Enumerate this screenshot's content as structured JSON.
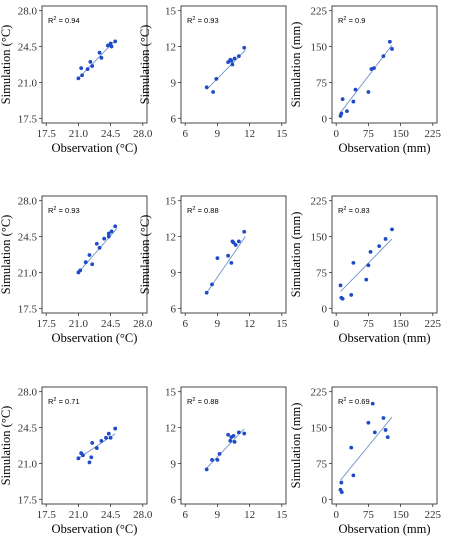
{
  "colors": {
    "point": "#1f4ac8",
    "fit_line": "#6f94c8",
    "panel_border": "#333333"
  },
  "chart_data": [
    {
      "type": "scatter",
      "r2": "0.94",
      "xlabel": "Observation (°C)",
      "ylabel": "Simulation (°C)",
      "xlim": [
        17.5,
        28.0
      ],
      "ylim": [
        17.5,
        28.0
      ],
      "xticks": [
        "17.5",
        "21.0",
        "24.5",
        "28.0"
      ],
      "yticks": [
        "17.5",
        "21.0",
        "24.5",
        "28.0"
      ],
      "fit": [
        [
          21.0,
          21.4
        ],
        [
          25.0,
          25.1
        ]
      ],
      "points": [
        [
          21.0,
          21.4
        ],
        [
          21.3,
          22.4
        ],
        [
          21.4,
          21.7
        ],
        [
          22.0,
          22.3
        ],
        [
          22.3,
          23.0
        ],
        [
          22.5,
          22.6
        ],
        [
          23.3,
          23.9
        ],
        [
          23.5,
          23.4
        ],
        [
          24.2,
          24.6
        ],
        [
          24.5,
          24.8
        ],
        [
          24.6,
          24.5
        ],
        [
          25.0,
          25.0
        ]
      ]
    },
    {
      "type": "scatter",
      "r2": "0.93",
      "xlabel": "",
      "ylabel": "Simulation (°C)",
      "xlim": [
        6,
        15
      ],
      "ylim": [
        6,
        15
      ],
      "xticks": [
        "6",
        "9",
        "12",
        "15"
      ],
      "yticks": [
        "6",
        "9",
        "12",
        "15"
      ],
      "fit": [
        [
          8.0,
          8.4
        ],
        [
          11.6,
          11.7
        ]
      ],
      "points": [
        [
          8.0,
          8.6
        ],
        [
          8.6,
          8.2
        ],
        [
          8.9,
          9.3
        ],
        [
          10.0,
          10.7
        ],
        [
          10.2,
          10.9
        ],
        [
          10.3,
          10.8
        ],
        [
          10.4,
          10.5
        ],
        [
          10.6,
          11.0
        ],
        [
          11.0,
          11.2
        ],
        [
          11.5,
          11.9
        ]
      ]
    },
    {
      "type": "scatter",
      "r2": "0.9",
      "xlabel": "Observation (mm)",
      "ylabel": "Simulation (mm)",
      "xlim": [
        0,
        225
      ],
      "ylim": [
        0,
        225
      ],
      "xticks": [
        "0",
        "75",
        "150",
        "225"
      ],
      "yticks": [
        "0",
        "75",
        "150",
        "225"
      ],
      "fit": [
        [
          10,
          12
        ],
        [
          130,
          153
        ]
      ],
      "points": [
        [
          10,
          5
        ],
        [
          12,
          10
        ],
        [
          15,
          40
        ],
        [
          25,
          15
        ],
        [
          40,
          35
        ],
        [
          45,
          60
        ],
        [
          75,
          55
        ],
        [
          82,
          103
        ],
        [
          88,
          105
        ],
        [
          110,
          130
        ],
        [
          125,
          160
        ],
        [
          130,
          145
        ]
      ]
    },
    {
      "type": "scatter",
      "r2": "0.93",
      "xlabel": "Observation (°C)",
      "ylabel": "Simulation (°C)",
      "xlim": [
        17.5,
        28.0
      ],
      "ylim": [
        17.5,
        28.0
      ],
      "xticks": [
        "17.5",
        "21.0",
        "24.5",
        "28.0"
      ],
      "yticks": [
        "17.5",
        "21.0",
        "24.5",
        "28.0"
      ],
      "fit": [
        [
          21.0,
          21.0
        ],
        [
          25.2,
          25.3
        ]
      ],
      "points": [
        [
          21.0,
          21.0
        ],
        [
          21.2,
          21.2
        ],
        [
          21.8,
          22.0
        ],
        [
          22.2,
          22.7
        ],
        [
          22.5,
          21.8
        ],
        [
          23.0,
          23.8
        ],
        [
          23.3,
          23.4
        ],
        [
          23.8,
          24.3
        ],
        [
          24.3,
          24.5
        ],
        [
          24.6,
          25.0
        ],
        [
          25.0,
          25.5
        ],
        [
          24.3,
          24.8
        ]
      ]
    },
    {
      "type": "scatter",
      "r2": "0.88",
      "xlabel": "",
      "ylabel": "Simulation (°C)",
      "xlim": [
        6,
        15
      ],
      "ylim": [
        6,
        15
      ],
      "xticks": [
        "6",
        "9",
        "12",
        "15"
      ],
      "yticks": [
        "6",
        "9",
        "12",
        "15"
      ],
      "fit": [
        [
          8.0,
          7.3
        ],
        [
          11.6,
          12.0
        ]
      ],
      "points": [
        [
          8.0,
          7.3
        ],
        [
          8.5,
          8.0
        ],
        [
          9.0,
          10.2
        ],
        [
          10.0,
          10.4
        ],
        [
          10.3,
          9.8
        ],
        [
          10.5,
          11.5
        ],
        [
          10.7,
          11.3
        ],
        [
          11.0,
          11.6
        ],
        [
          11.5,
          12.4
        ],
        [
          10.4,
          11.6
        ]
      ]
    },
    {
      "type": "scatter",
      "r2": "0.83",
      "xlabel": "Observation (mm)",
      "ylabel": "Simulation (mm)",
      "xlim": [
        0,
        225
      ],
      "ylim": [
        0,
        225
      ],
      "xticks": [
        "0",
        "75",
        "150",
        "225"
      ],
      "yticks": [
        "0",
        "75",
        "150",
        "225"
      ],
      "fit": [
        [
          10,
          35
        ],
        [
          130,
          145
        ]
      ],
      "points": [
        [
          10,
          48
        ],
        [
          12,
          22
        ],
        [
          15,
          20
        ],
        [
          35,
          28
        ],
        [
          40,
          95
        ],
        [
          70,
          60
        ],
        [
          75,
          90
        ],
        [
          80,
          118
        ],
        [
          100,
          130
        ],
        [
          115,
          145
        ],
        [
          130,
          165
        ]
      ]
    },
    {
      "type": "scatter",
      "r2": "0.71",
      "xlabel": "Observation (°C)",
      "ylabel": "Simulation (°C)",
      "xlim": [
        17.5,
        28.0
      ],
      "ylim": [
        17.5,
        28.0
      ],
      "xticks": [
        "17.5",
        "21.0",
        "24.5",
        "28.0"
      ],
      "yticks": [
        "17.5",
        "21.0",
        "24.5",
        "28.0"
      ],
      "fit": [
        [
          21.0,
          21.5
        ],
        [
          25.0,
          23.9
        ]
      ],
      "points": [
        [
          21.0,
          21.5
        ],
        [
          21.3,
          22.0
        ],
        [
          21.5,
          21.8
        ],
        [
          22.2,
          21.1
        ],
        [
          22.4,
          21.6
        ],
        [
          22.5,
          23.0
        ],
        [
          23.0,
          22.5
        ],
        [
          23.5,
          23.2
        ],
        [
          24.0,
          23.5
        ],
        [
          24.3,
          23.9
        ],
        [
          24.5,
          23.5
        ],
        [
          25.0,
          24.4
        ]
      ]
    },
    {
      "type": "scatter",
      "r2": "0.88",
      "xlabel": "",
      "ylabel": "",
      "xlim": [
        6,
        15
      ],
      "ylim": [
        6,
        15
      ],
      "xticks": [
        "6",
        "9",
        "12",
        "15"
      ],
      "yticks": [
        "6",
        "9",
        "12",
        "15"
      ],
      "fit": [
        [
          8.0,
          8.6
        ],
        [
          11.5,
          11.9
        ]
      ],
      "points": [
        [
          8.0,
          8.5
        ],
        [
          8.5,
          9.3
        ],
        [
          9.0,
          9.3
        ],
        [
          9.2,
          9.8
        ],
        [
          10.0,
          11.4
        ],
        [
          10.2,
          10.9
        ],
        [
          10.5,
          11.3
        ],
        [
          10.6,
          10.8
        ],
        [
          11.0,
          11.6
        ],
        [
          11.5,
          11.5
        ],
        [
          10.3,
          11.2
        ]
      ]
    },
    {
      "type": "scatter",
      "r2": "0.69",
      "xlabel": "Observation (mm)",
      "ylabel": "Simulation (mm)",
      "xlim": [
        0,
        225
      ],
      "ylim": [
        0,
        225
      ],
      "xticks": [
        "0",
        "75",
        "150",
        "225"
      ],
      "yticks": [
        "0",
        "75",
        "150",
        "225"
      ],
      "fit": [
        [
          10,
          40
        ],
        [
          130,
          172
        ]
      ],
      "points": [
        [
          10,
          20
        ],
        [
          12,
          35
        ],
        [
          13,
          15
        ],
        [
          35,
          108
        ],
        [
          40,
          50
        ],
        [
          75,
          160
        ],
        [
          85,
          200
        ],
        [
          90,
          140
        ],
        [
          110,
          170
        ],
        [
          115,
          145
        ],
        [
          120,
          130
        ]
      ]
    }
  ]
}
